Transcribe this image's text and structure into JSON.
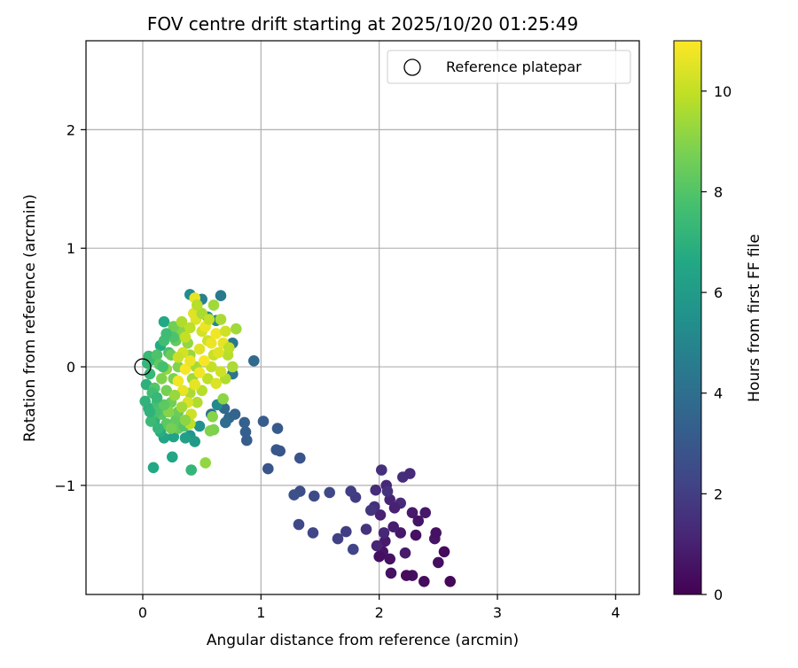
{
  "chart_data": {
    "type": "scatter",
    "title": "FOV centre drift starting at 2025/10/20 01:25:49",
    "xlabel": "Angular distance from reference (arcmin)",
    "ylabel": "Rotation from reference (arcmin)",
    "xlim": [
      -0.48,
      4.2
    ],
    "ylim": [
      -1.92,
      2.75
    ],
    "xticks": [
      0,
      1,
      2,
      3,
      4
    ],
    "yticks": [
      -1,
      0,
      1,
      2
    ],
    "xtick_labels": [
      "0",
      "1",
      "2",
      "3",
      "4"
    ],
    "ytick_labels": [
      "−1",
      "0",
      "1",
      "2"
    ],
    "grid": true,
    "legend": {
      "placement": "top-right",
      "entries": [
        {
          "label": "Reference platepar",
          "marker": "open-circle"
        }
      ]
    },
    "reference_point": {
      "x": 0,
      "y": 0
    },
    "colorbar": {
      "label": "Hours from first FF file",
      "colormap": "viridis",
      "range": [
        0,
        11
      ],
      "ticks": [
        0,
        2,
        4,
        6,
        8,
        10
      ],
      "tick_labels": [
        "0",
        "2",
        "4",
        "6",
        "8",
        "10"
      ]
    },
    "series": [
      {
        "color_by": "hours",
        "points": [
          [
            2.6,
            -1.81,
            0.2
          ],
          [
            2.38,
            -1.81,
            0.3
          ],
          [
            2.28,
            -1.76,
            0.4
          ],
          [
            2.23,
            -1.76,
            0.3
          ],
          [
            2.1,
            -1.74,
            0.5
          ],
          [
            2.5,
            -1.65,
            0.4
          ],
          [
            2.55,
            -1.56,
            0.3
          ],
          [
            2.47,
            -1.45,
            0.6
          ],
          [
            2.48,
            -1.4,
            0.5
          ],
          [
            2.39,
            -1.23,
            0.7
          ],
          [
            2.28,
            -1.23,
            0.8
          ],
          [
            2.33,
            -1.3,
            0.6
          ],
          [
            2.31,
            -1.42,
            0.5
          ],
          [
            2.18,
            -1.4,
            0.7
          ],
          [
            2.12,
            -1.35,
            0.9
          ],
          [
            2.05,
            -1.47,
            0.8
          ],
          [
            2.03,
            -1.56,
            0.6
          ],
          [
            2.09,
            -1.62,
            0.5
          ],
          [
            2.0,
            -1.6,
            0.4
          ],
          [
            2.01,
            -1.25,
            1.0
          ],
          [
            2.09,
            -1.12,
            1.1
          ],
          [
            2.18,
            -1.15,
            1.3
          ],
          [
            2.13,
            -1.19,
            1.0
          ],
          [
            2.06,
            -1.0,
            1.2
          ],
          [
            2.2,
            -0.93,
            1.4
          ],
          [
            2.26,
            -0.9,
            1.3
          ],
          [
            2.02,
            -0.87,
            1.5
          ],
          [
            1.97,
            -1.04,
            1.4
          ],
          [
            2.07,
            -1.05,
            1.6
          ],
          [
            1.96,
            -1.18,
            1.5
          ],
          [
            1.93,
            -1.21,
            1.7
          ],
          [
            1.89,
            -1.37,
            1.6
          ],
          [
            2.04,
            -1.4,
            1.2
          ],
          [
            1.98,
            -1.51,
            1.1
          ],
          [
            2.22,
            -1.57,
            0.8
          ],
          [
            1.72,
            -1.39,
            2.0
          ],
          [
            1.65,
            -1.45,
            2.1
          ],
          [
            1.8,
            -1.1,
            1.9
          ],
          [
            1.78,
            -1.54,
            2.2
          ],
          [
            1.76,
            -1.05,
            2.0
          ],
          [
            1.58,
            -1.06,
            2.4
          ],
          [
            1.45,
            -1.09,
            2.5
          ],
          [
            1.33,
            -1.05,
            2.6
          ],
          [
            1.28,
            -1.08,
            2.7
          ],
          [
            1.44,
            -1.4,
            2.3
          ],
          [
            1.32,
            -1.33,
            2.4
          ],
          [
            1.33,
            -0.77,
            2.8
          ],
          [
            1.16,
            -0.71,
            2.9
          ],
          [
            1.13,
            -0.7,
            3.0
          ],
          [
            1.06,
            -0.86,
            2.9
          ],
          [
            0.88,
            -0.62,
            3.2
          ],
          [
            0.87,
            -0.55,
            3.3
          ],
          [
            1.14,
            -0.52,
            3.1
          ],
          [
            1.02,
            -0.46,
            3.2
          ],
          [
            0.86,
            -0.47,
            3.4
          ],
          [
            0.78,
            -0.4,
            3.5
          ],
          [
            0.73,
            -0.43,
            3.6
          ],
          [
            0.69,
            -0.35,
            3.7
          ],
          [
            0.94,
            0.05,
            3.8
          ],
          [
            0.7,
            -0.47,
            3.9
          ],
          [
            0.58,
            -0.4,
            4.0
          ],
          [
            0.76,
            -0.06,
            4.2
          ],
          [
            0.76,
            0.2,
            4.3
          ],
          [
            0.66,
            0.6,
            4.5
          ],
          [
            0.5,
            0.57,
            4.7
          ],
          [
            0.4,
            0.61,
            5.2
          ],
          [
            0.62,
            0.39,
            5.0
          ],
          [
            0.55,
            0.42,
            5.3
          ],
          [
            0.63,
            -0.32,
            5.1
          ],
          [
            0.48,
            -0.5,
            5.5
          ],
          [
            0.4,
            -0.58,
            5.8
          ],
          [
            0.44,
            -0.63,
            6.0
          ],
          [
            0.36,
            -0.6,
            6.2
          ],
          [
            0.26,
            -0.59,
            6.3
          ],
          [
            0.18,
            -0.6,
            6.4
          ],
          [
            0.25,
            -0.76,
            6.5
          ],
          [
            0.41,
            -0.87,
            7.2
          ],
          [
            0.09,
            -0.85,
            6.6
          ],
          [
            0.15,
            -0.55,
            6.8
          ],
          [
            0.1,
            -0.45,
            7.0
          ],
          [
            0.05,
            -0.35,
            6.9
          ],
          [
            0.02,
            -0.29,
            7.1
          ],
          [
            0.03,
            -0.15,
            7.0
          ],
          [
            0.06,
            -0.06,
            7.3
          ],
          [
            0.04,
            0.03,
            7.2
          ],
          [
            0.08,
            0.06,
            7.5
          ],
          [
            0.05,
            0.09,
            7.4
          ],
          [
            0.15,
            0.18,
            6.7
          ],
          [
            0.18,
            0.38,
            6.6
          ],
          [
            0.18,
            0.22,
            7.6
          ],
          [
            0.22,
            0.12,
            7.8
          ],
          [
            0.12,
            0.1,
            7.9
          ],
          [
            0.1,
            -0.18,
            8.0
          ],
          [
            0.12,
            -0.3,
            7.7
          ],
          [
            0.16,
            -0.4,
            8.1
          ],
          [
            0.2,
            -0.48,
            8.2
          ],
          [
            0.28,
            -0.45,
            8.3
          ],
          [
            0.3,
            -0.52,
            8.4
          ],
          [
            0.35,
            -0.5,
            8.0
          ],
          [
            0.3,
            -0.38,
            8.5
          ],
          [
            0.24,
            -0.3,
            8.6
          ],
          [
            0.2,
            -0.2,
            8.7
          ],
          [
            0.26,
            -0.1,
            8.8
          ],
          [
            0.3,
            0.0,
            8.9
          ],
          [
            0.24,
            0.1,
            8.5
          ],
          [
            0.28,
            0.22,
            8.4
          ],
          [
            0.32,
            0.3,
            9.0
          ],
          [
            0.26,
            0.34,
            8.6
          ],
          [
            0.38,
            0.2,
            9.2
          ],
          [
            0.4,
            0.1,
            9.3
          ],
          [
            0.45,
            0.0,
            9.5
          ],
          [
            0.42,
            -0.1,
            9.4
          ],
          [
            0.4,
            -0.22,
            9.6
          ],
          [
            0.46,
            -0.3,
            9.7
          ],
          [
            0.5,
            -0.2,
            9.8
          ],
          [
            0.55,
            -0.1,
            9.9
          ],
          [
            0.58,
            0.0,
            10.0
          ],
          [
            0.6,
            0.1,
            10.1
          ],
          [
            0.55,
            0.22,
            10.2
          ],
          [
            0.5,
            0.3,
            10.3
          ],
          [
            0.45,
            0.4,
            10.4
          ],
          [
            0.43,
            0.45,
            10.5
          ],
          [
            0.44,
            0.58,
            10.6
          ],
          [
            0.53,
            0.34,
            10.7
          ],
          [
            0.62,
            0.28,
            10.8
          ],
          [
            0.68,
            0.2,
            10.6
          ],
          [
            0.72,
            0.1,
            9.8
          ],
          [
            0.76,
            0.0,
            9.6
          ],
          [
            0.79,
            0.32,
            9.4
          ],
          [
            0.7,
            -0.1,
            9.7
          ],
          [
            0.68,
            -0.27,
            9.1
          ],
          [
            0.59,
            -0.42,
            9.0
          ],
          [
            0.6,
            -0.53,
            8.8
          ],
          [
            0.57,
            -0.54,
            8.9
          ],
          [
            0.53,
            -0.81,
            9.2
          ],
          [
            0.4,
            -0.48,
            9.9
          ],
          [
            0.41,
            -0.4,
            10.2
          ],
          [
            0.38,
            -0.3,
            10.4
          ],
          [
            0.34,
            -0.2,
            10.6
          ],
          [
            0.3,
            -0.12,
            10.8
          ],
          [
            0.36,
            -0.02,
            10.9
          ],
          [
            0.4,
            0.05,
            10.7
          ],
          [
            0.34,
            0.12,
            10.3
          ],
          [
            0.3,
            0.08,
            10.1
          ],
          [
            0.36,
            0.25,
            10.0
          ],
          [
            0.4,
            0.33,
            9.9
          ],
          [
            0.33,
            0.38,
            9.7
          ],
          [
            0.48,
            0.15,
            10.5
          ],
          [
            0.52,
            0.05,
            10.9
          ],
          [
            0.48,
            -0.05,
            10.8
          ],
          [
            0.44,
            -0.15,
            10.6
          ],
          [
            0.62,
            -0.14,
            10.4
          ],
          [
            0.66,
            -0.04,
            10.2
          ],
          [
            0.64,
            0.12,
            10.5
          ],
          [
            0.58,
            0.2,
            10.7
          ],
          [
            0.2,
            -0.02,
            9.2
          ],
          [
            0.16,
            -0.1,
            8.9
          ],
          [
            0.14,
            0.02,
            8.3
          ],
          [
            0.22,
            -0.38,
            9.0
          ],
          [
            0.27,
            -0.24,
            9.3
          ],
          [
            0.33,
            -0.34,
            9.5
          ],
          [
            0.36,
            -0.45,
            9.1
          ],
          [
            0.24,
            -0.52,
            8.7
          ],
          [
            0.18,
            -0.32,
            8.2
          ],
          [
            0.08,
            -0.22,
            7.6
          ],
          [
            0.11,
            -0.38,
            7.8
          ],
          [
            0.07,
            -0.46,
            7.4
          ],
          [
            0.13,
            -0.52,
            7.2
          ],
          [
            0.5,
            0.45,
            9.6
          ],
          [
            0.56,
            0.4,
            10.0
          ],
          [
            0.6,
            0.52,
            9.4
          ],
          [
            0.46,
            0.52,
            9.8
          ],
          [
            0.66,
            0.4,
            9.6
          ],
          [
            0.7,
            0.3,
            10.2
          ],
          [
            0.73,
            0.16,
            9.9
          ],
          [
            0.26,
            0.25,
            7.9
          ],
          [
            0.2,
            0.28,
            7.5
          ],
          [
            0.17,
            0.0,
            7.7
          ],
          [
            0.12,
            -0.26,
            7.3
          ],
          [
            0.06,
            -0.38,
            7.1
          ]
        ]
      }
    ]
  }
}
